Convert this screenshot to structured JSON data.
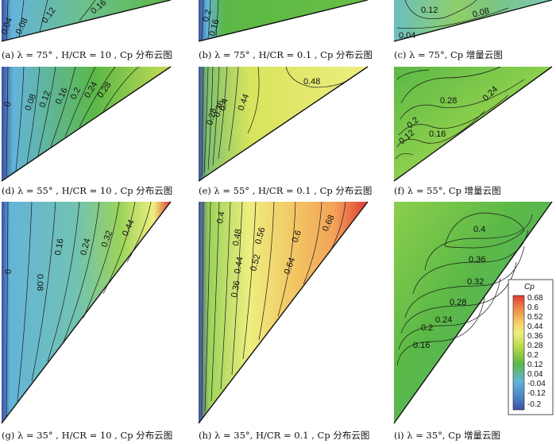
{
  "panels": [
    {
      "id": "a",
      "caption": "(a)  λ = 75° , H/CR = 10 , Cp 分布云图",
      "labels": [
        "0.04",
        "0.08",
        "0.12",
        "0.16"
      ]
    },
    {
      "id": "b",
      "caption": "(b)  λ = 75° , H/CR = 0.1 , Cp 分布云图",
      "labels": [
        "0.2",
        "0.16"
      ]
    },
    {
      "id": "c",
      "caption": "(c)  λ = 75°, Cp 增量云图",
      "labels": [
        "0.12",
        "0.08",
        "0.04"
      ]
    },
    {
      "id": "d",
      "caption": "(d)  λ = 55° , H/CR = 10 , Cp 分布云图",
      "labels": [
        "0",
        "0.08",
        "0.12",
        "0.16",
        "0.2",
        "0.24",
        "0.28"
      ]
    },
    {
      "id": "e",
      "caption": "(e)  λ = 55° , H/CR = 0.1 , Cp 分布云图",
      "labels": [
        "0.48",
        "0.44",
        "0.4",
        "0.36",
        "0.28"
      ]
    },
    {
      "id": "f",
      "caption": "(f)  λ = 55°, Cp 增量云图",
      "labels": [
        "0.28",
        "0.24",
        "0.2",
        "0.16",
        "0.12"
      ]
    },
    {
      "id": "g",
      "caption": "(g)  λ = 35° , H/CR = 10 , Cp 分布云图",
      "labels": [
        "0",
        "0.08",
        "0.16",
        "0.24",
        "0.32",
        "0.44"
      ]
    },
    {
      "id": "h",
      "caption": "(h)  λ = 35°, H/CR = 0.1 , Cp 分布云图",
      "labels": [
        "0.4",
        "0.48",
        "0.56",
        "0.6",
        "0.68",
        "0.52",
        "0.44",
        "0.36",
        "0.64"
      ]
    },
    {
      "id": "i",
      "caption": "(i)  λ = 35°, Cp 增量云图",
      "labels": [
        "0.4",
        "0.36",
        "0.32",
        "0.28",
        "0.24",
        "0.2",
        "0.16"
      ]
    }
  ],
  "colorbar": {
    "title": "Cp",
    "ticks": [
      "0.68",
      "0.6",
      "0.52",
      "0.44",
      "0.36",
      "0.28",
      "0.2",
      "0.12",
      "0.04",
      "-0.04",
      "-0.12",
      "-0.2"
    ]
  },
  "colors": {
    "blue": "#3b4fa3",
    "cyan": "#63b4d9",
    "green": "#5bb847",
    "yellowgreen": "#b9d94a",
    "yellow": "#eeee80",
    "orange": "#f3a35a",
    "red": "#e03a33"
  }
}
